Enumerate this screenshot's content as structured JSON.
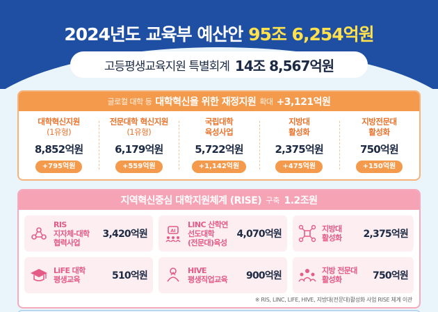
{
  "header": {
    "title_prefix": "2024년도 교육부 예산안",
    "title_amount": "95조 6,254억원",
    "sub_label": "고등평생교육지원 특별회계",
    "sub_amount": "14조 8,567억원"
  },
  "panel1": {
    "head_small_1": "글로컬 대학 등",
    "head_bold_1": "대학혁신을 위한 재정지원",
    "head_small_2": "확대",
    "head_bold_2": "+3,121억원",
    "items": [
      {
        "name": "대학혁신지원",
        "sub": "(1유형)",
        "amount": "8,852억원",
        "delta": "+795억원"
      },
      {
        "name": "전문대학 혁신지원",
        "sub": "(1유형)",
        "amount": "6,179억원",
        "delta": "+559억원"
      },
      {
        "name": "국립대학",
        "sub": "육성사업",
        "amount": "5,722억원",
        "delta": "+1,142억원"
      },
      {
        "name": "지방대",
        "sub": "활성화",
        "amount": "2,375억원",
        "delta": "+475억원"
      },
      {
        "name": "지방전문대",
        "sub": "활성화",
        "amount": "750억원",
        "delta": "+150억원"
      }
    ]
  },
  "panel2": {
    "head_bold": "지역혁신중심 대학지원체계 (RISE)",
    "head_small": "구축",
    "head_amount": "1.2조원",
    "cards": [
      {
        "icon": "network-icon",
        "lines": [
          "RIS",
          "지자체-대학",
          "협력사업"
        ],
        "amount": "3,420억원"
      },
      {
        "icon": "ai-people-icon",
        "lines": [
          "LINC 산학연",
          "선도대학",
          "(전문대)육성"
        ],
        "amount": "4,070억원"
      },
      {
        "icon": "hub-icon",
        "lines": [
          "지방대",
          "활성화"
        ],
        "amount": "2,375억원"
      },
      {
        "icon": "graduation-cap-icon",
        "lines": [
          "LiFE 대학",
          "평생교육"
        ],
        "amount": "510억원"
      },
      {
        "icon": "presenter-icon",
        "lines": [
          "HIVE",
          "평생직업교육"
        ],
        "amount": "900억원"
      },
      {
        "icon": "group-icon",
        "lines": [
          "지방 전문대",
          "활성화"
        ],
        "amount": "750억원"
      }
    ],
    "footnote": "※ RIS, LINC, LIFE, HIVE, 지방대(전문대)활성화 사업 RISE 체계 이관"
  },
  "colors": {
    "navy": "#1f4fa3",
    "yellow": "#ffe14d",
    "orange": "#f39a4c",
    "pink": "#f7a3b6",
    "pink_text": "#e45b85"
  }
}
